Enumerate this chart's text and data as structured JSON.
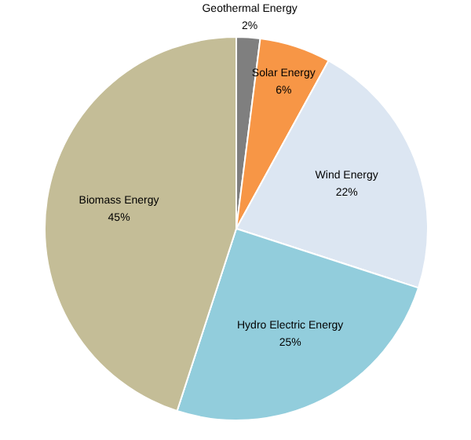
{
  "chart_data": {
    "type": "pie",
    "categories": [
      "Geothermal Energy",
      "Solar Energy",
      "Wind Energy",
      "Hydro Electric Energy",
      "Biomass Energy"
    ],
    "values": [
      2,
      6,
      22,
      25,
      45
    ],
    "value_labels": [
      "2%",
      "6%",
      "22%",
      "25%",
      "45%"
    ],
    "colors": [
      "#7f7f7f",
      "#f79646",
      "#dce6f2",
      "#92cddc",
      "#c4bd97"
    ],
    "legend": false
  }
}
